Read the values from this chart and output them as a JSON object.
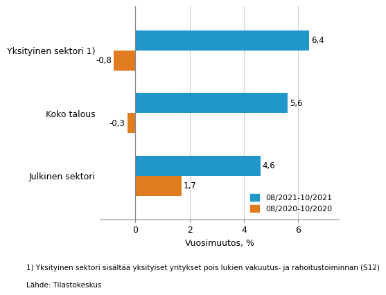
{
  "categories": [
    "Julkinen sektori",
    "Koko talous",
    "Yksityinen sektori 1)"
  ],
  "series": [
    {
      "label": "08/2021-10/2021",
      "values": [
        4.6,
        5.6,
        6.4
      ]
    },
    {
      "label": "08/2020-10/2020",
      "values": [
        1.7,
        -0.3,
        -0.8
      ]
    }
  ],
  "xlabel": "Vuosimuutos, %",
  "xlim": [
    -1.3,
    7.5
  ],
  "xticks": [
    0,
    2,
    4,
    6
  ],
  "xticklabels": [
    "0",
    "2",
    "4",
    "6"
  ],
  "footnote1": "1) Yksityinen sektori sisältää yksityiset yritykset pois lukien vakuutus- ja rahoitustoiminnan (S12)",
  "footnote2": "Lähde: Tilastokeskus",
  "bar_height": 0.32,
  "value_labels_blue": [
    "4,6",
    "5,6",
    "6,4"
  ],
  "value_labels_orange": [
    "1,7",
    "-0,3",
    "-0,8"
  ],
  "blue_color": "#2196C9",
  "orange_color": "#E07B20",
  "grid_color": "#D0D0D0",
  "background_color": "#FFFFFF",
  "axvline_color": "#888888",
  "spine_color": "#888888"
}
